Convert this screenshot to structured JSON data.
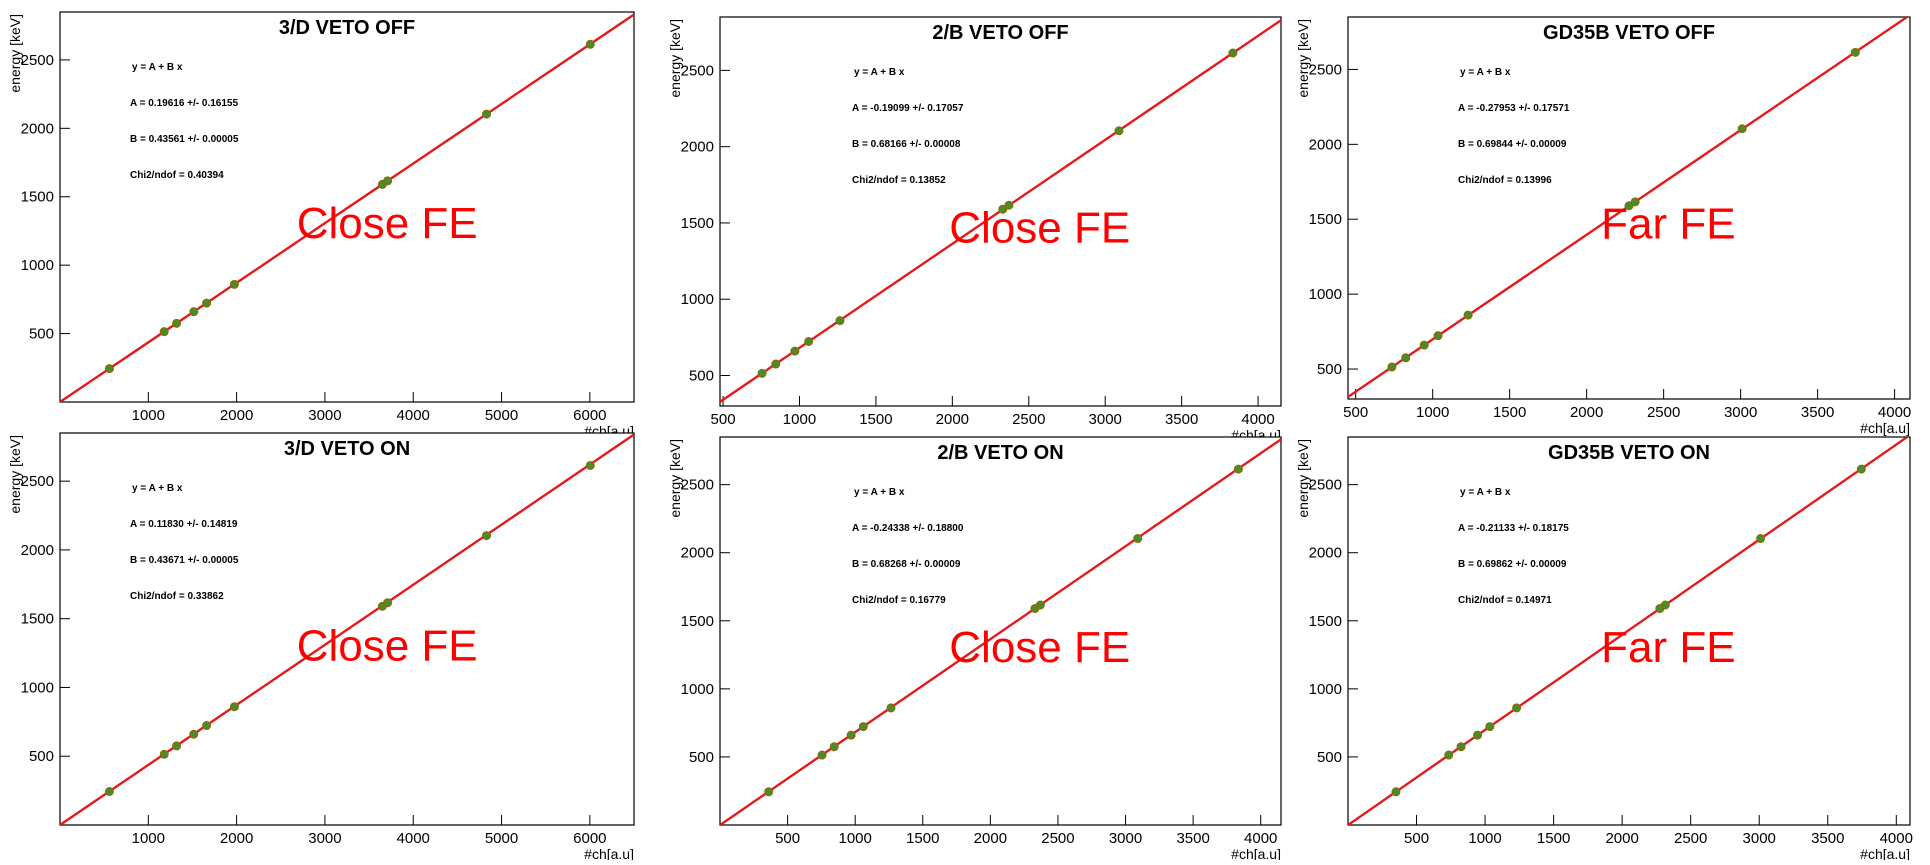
{
  "colors": {
    "fit_line": "#e41a1c",
    "marker": "#4f8a2a",
    "fe_label": "#ff0000",
    "axes": "#000000"
  },
  "chart_data": [
    {
      "type": "scatter",
      "panel": "3D-veto-off",
      "title": "3/D VETO OFF",
      "xlabel": "#ch[a.u]",
      "ylabel": "energy [keV]",
      "xlim": [
        0,
        6500
      ],
      "ylim": [
        0,
        2850
      ],
      "xticks": [
        1000,
        2000,
        3000,
        4000,
        5000,
        6000
      ],
      "yticks": [
        500,
        1000,
        1500,
        2000,
        2500
      ],
      "fit": {
        "A": 0.19616,
        "B": 0.43561
      },
      "stats": [
        "y = A + B x",
        "A = 0.19616 +/- 0.16155",
        "B = 0.43561 +/- 0.00005",
        "Chi2/ndof = 0.40394"
      ],
      "points": [
        {
          "x": 560,
          "y": 244
        },
        {
          "x": 1180,
          "y": 514
        },
        {
          "x": 1320,
          "y": 575
        },
        {
          "x": 1515,
          "y": 660
        },
        {
          "x": 1660,
          "y": 723
        },
        {
          "x": 1975,
          "y": 860
        },
        {
          "x": 3650,
          "y": 1590
        },
        {
          "x": 3710,
          "y": 1616
        },
        {
          "x": 4830,
          "y": 2104
        },
        {
          "x": 6005,
          "y": 2614
        }
      ],
      "fe_label": "Close FE"
    },
    {
      "type": "scatter",
      "panel": "2B-veto-off",
      "title": "2/B VETO OFF",
      "xlabel": "#ch[a.u]",
      "ylabel": "energy [keV]",
      "xlim": [
        480,
        4150
      ],
      "ylim": [
        300,
        2850
      ],
      "xticks": [
        500,
        1000,
        1500,
        2000,
        2500,
        3000,
        3500,
        4000
      ],
      "yticks": [
        500,
        1000,
        1500,
        2000,
        2500
      ],
      "fit": {
        "A": -0.19099,
        "B": 0.68166
      },
      "stats": [
        "y = A + B x",
        "A = -0.19099 +/- 0.17057",
        "B = 0.68166 +/- 0.00008",
        "Chi2/ndof = 0.13852"
      ],
      "points": [
        {
          "x": 755,
          "y": 514
        },
        {
          "x": 845,
          "y": 575
        },
        {
          "x": 970,
          "y": 660
        },
        {
          "x": 1060,
          "y": 723
        },
        {
          "x": 1265,
          "y": 860
        },
        {
          "x": 2330,
          "y": 1590
        },
        {
          "x": 2370,
          "y": 1616
        },
        {
          "x": 3090,
          "y": 2104
        },
        {
          "x": 3835,
          "y": 2614
        }
      ],
      "fe_label": "Close FE"
    },
    {
      "type": "scatter",
      "panel": "GD35B-veto-off",
      "title": "GD35B VETO OFF",
      "xlabel": "#ch[a.u]",
      "ylabel": "energy [keV]",
      "xlim": [
        450,
        4100
      ],
      "ylim": [
        300,
        2850
      ],
      "xticks": [
        500,
        1000,
        1500,
        2000,
        2500,
        3000,
        3500,
        4000
      ],
      "yticks": [
        500,
        1000,
        1500,
        2000,
        2500
      ],
      "fit": {
        "A": -0.27953,
        "B": 0.69844
      },
      "stats": [
        "y = A + B x",
        "A = -0.27953 +/- 0.17571",
        "B = 0.69844 +/- 0.00009",
        "Chi2/ndof = 0.13996"
      ],
      "points": [
        {
          "x": 735,
          "y": 514
        },
        {
          "x": 825,
          "y": 575
        },
        {
          "x": 945,
          "y": 660
        },
        {
          "x": 1035,
          "y": 723
        },
        {
          "x": 1230,
          "y": 860
        },
        {
          "x": 2275,
          "y": 1590
        },
        {
          "x": 2315,
          "y": 1616
        },
        {
          "x": 3010,
          "y": 2104
        },
        {
          "x": 3745,
          "y": 2614
        }
      ],
      "fe_label": "Far FE"
    },
    {
      "type": "scatter",
      "panel": "3D-veto-on",
      "title": "3/D VETO ON",
      "xlabel": "#ch[a.u]",
      "ylabel": "energy [keV]",
      "xlim": [
        0,
        6500
      ],
      "ylim": [
        0,
        2850
      ],
      "xticks": [
        1000,
        2000,
        3000,
        4000,
        5000,
        6000
      ],
      "yticks": [
        500,
        1000,
        1500,
        2000,
        2500
      ],
      "fit": {
        "A": 0.1183,
        "B": 0.43671
      },
      "stats": [
        "y = A + B x",
        "A = 0.11830 +/- 0.14819",
        "B = 0.43671 +/- 0.00005",
        "Chi2/ndof = 0.33862"
      ],
      "points": [
        {
          "x": 560,
          "y": 244
        },
        {
          "x": 1180,
          "y": 514
        },
        {
          "x": 1320,
          "y": 575
        },
        {
          "x": 1515,
          "y": 660
        },
        {
          "x": 1660,
          "y": 723
        },
        {
          "x": 1975,
          "y": 860
        },
        {
          "x": 3650,
          "y": 1590
        },
        {
          "x": 3710,
          "y": 1616
        },
        {
          "x": 4830,
          "y": 2104
        },
        {
          "x": 6005,
          "y": 2614
        }
      ],
      "fe_label": "Close FE"
    },
    {
      "type": "scatter",
      "panel": "2B-veto-on",
      "title": "2/B VETO ON",
      "xlabel": "#ch[a.u]",
      "ylabel": "energy [keV]",
      "xlim": [
        0,
        4150
      ],
      "ylim": [
        0,
        2850
      ],
      "xticks": [
        500,
        1000,
        1500,
        2000,
        2500,
        3000,
        3500,
        4000
      ],
      "yticks": [
        500,
        1000,
        1500,
        2000,
        2500
      ],
      "fit": {
        "A": -0.24338,
        "B": 0.68268
      },
      "stats": [
        "y = A + B x",
        "A = -0.24338 +/- 0.18800",
        "B = 0.68268 +/- 0.00009",
        "Chi2/ndof = 0.16779"
      ],
      "points": [
        {
          "x": 360,
          "y": 244
        },
        {
          "x": 755,
          "y": 514
        },
        {
          "x": 845,
          "y": 575
        },
        {
          "x": 970,
          "y": 660
        },
        {
          "x": 1060,
          "y": 723
        },
        {
          "x": 1265,
          "y": 860
        },
        {
          "x": 2330,
          "y": 1590
        },
        {
          "x": 2370,
          "y": 1616
        },
        {
          "x": 3090,
          "y": 2104
        },
        {
          "x": 3835,
          "y": 2614
        }
      ],
      "fe_label": "Close FE"
    },
    {
      "type": "scatter",
      "panel": "GD35B-veto-on",
      "title": "GD35B VETO ON",
      "xlabel": "#ch[a.u]",
      "ylabel": "energy [keV]",
      "xlim": [
        0,
        4100
      ],
      "ylim": [
        0,
        2850
      ],
      "xticks": [
        500,
        1000,
        1500,
        2000,
        2500,
        3000,
        3500,
        4000
      ],
      "yticks": [
        500,
        1000,
        1500,
        2000,
        2500
      ],
      "fit": {
        "A": -0.21133,
        "B": 0.69862
      },
      "stats": [
        "y = A + B x",
        "A = -0.21133 +/- 0.18175",
        "B = 0.69862 +/- 0.00009",
        "Chi2/ndof = 0.14971"
      ],
      "points": [
        {
          "x": 350,
          "y": 244
        },
        {
          "x": 735,
          "y": 514
        },
        {
          "x": 825,
          "y": 575
        },
        {
          "x": 945,
          "y": 660
        },
        {
          "x": 1035,
          "y": 723
        },
        {
          "x": 1230,
          "y": 860
        },
        {
          "x": 2275,
          "y": 1590
        },
        {
          "x": 2315,
          "y": 1616
        },
        {
          "x": 3010,
          "y": 2104
        },
        {
          "x": 3745,
          "y": 2614
        }
      ],
      "fe_label": "Far FE"
    }
  ]
}
